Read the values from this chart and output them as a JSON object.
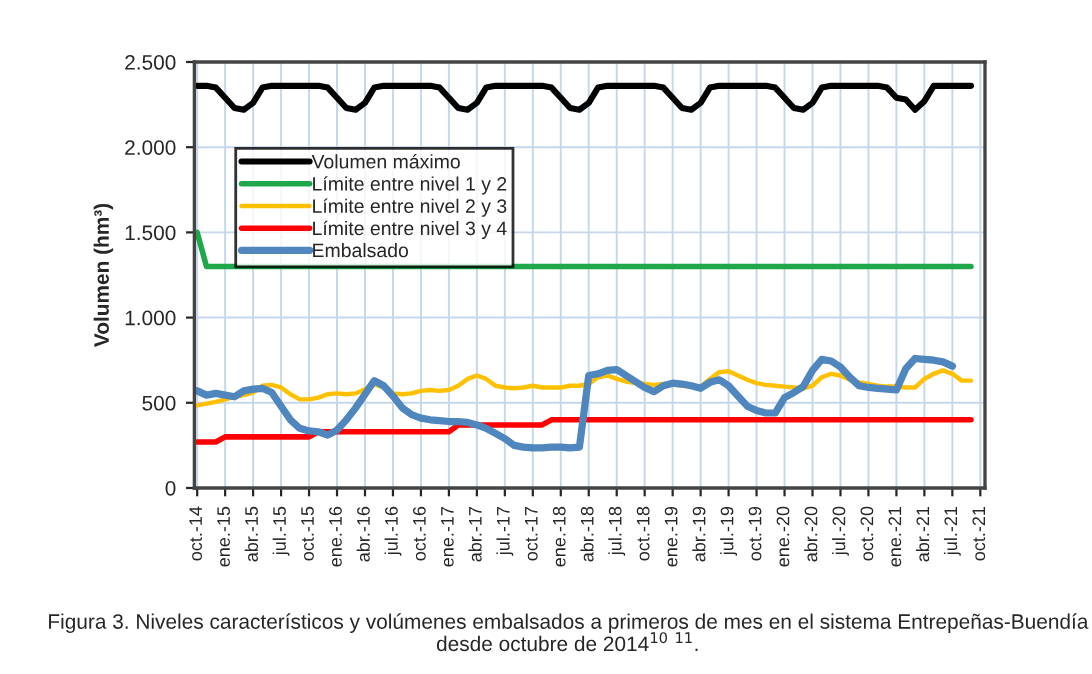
{
  "chart_data": {
    "type": "line",
    "categories": [
      "oct.-14",
      null,
      null,
      "ene.-15",
      null,
      null,
      "abr.-15",
      null,
      null,
      "jul.-15",
      null,
      null,
      "oct.-15",
      null,
      null,
      "ene.-16",
      null,
      null,
      "abr.-16",
      null,
      null,
      "jul.-16",
      null,
      null,
      "oct.-16",
      null,
      null,
      "ene.-17",
      null,
      null,
      "abr.-17",
      null,
      null,
      "jul.-17",
      null,
      null,
      "oct.-17",
      null,
      null,
      "ene.-18",
      null,
      null,
      "abr.-18",
      null,
      null,
      "jul.-18",
      null,
      null,
      "oct.-18",
      null,
      null,
      "ene.-19",
      null,
      null,
      "abr.-19",
      null,
      null,
      "jul.-19",
      null,
      null,
      "oct.-19",
      null,
      null,
      "ene.-20",
      null,
      null,
      "abr.-20",
      null,
      null,
      "jul.-20",
      null,
      null,
      "oct.-20",
      null,
      null,
      "ene.-21",
      null,
      null,
      "abr.-21",
      null,
      null,
      "jul.-21",
      null,
      null,
      "oct.-21"
    ],
    "ylabel": "Volumen (hm³)",
    "ylim": [
      0,
      2500
    ],
    "yticks": [
      0,
      500,
      {
        "value": 1000,
        "label": "1.000"
      },
      {
        "value": 1500,
        "label": "1.500"
      },
      {
        "value": 2000,
        "label": "2.000"
      },
      {
        "value": 2500,
        "label": "2.500"
      }
    ],
    "grid": true,
    "legend": "top left",
    "series": [
      {
        "name": "Volumen máximo",
        "color": "#000000",
        "values": [
          2360,
          2360,
          2350,
          2290,
          2230,
          2220,
          2260,
          2350,
          2360,
          2360,
          2360,
          2360,
          2360,
          2360,
          2350,
          2290,
          2230,
          2220,
          2260,
          2350,
          2360,
          2360,
          2360,
          2360,
          2360,
          2360,
          2350,
          2290,
          2230,
          2220,
          2260,
          2350,
          2360,
          2360,
          2360,
          2360,
          2360,
          2360,
          2350,
          2290,
          2230,
          2220,
          2260,
          2350,
          2360,
          2360,
          2360,
          2360,
          2360,
          2360,
          2350,
          2290,
          2230,
          2220,
          2260,
          2350,
          2360,
          2360,
          2360,
          2360,
          2360,
          2360,
          2350,
          2290,
          2230,
          2220,
          2260,
          2350,
          2360,
          2360,
          2360,
          2360,
          2360,
          2360,
          2350,
          2290,
          2280,
          2220,
          2270,
          2360,
          2360,
          2360,
          2360,
          2360,
          null
        ]
      },
      {
        "name": "Límite entre nivel 1 y 2",
        "color": "#1fa84a",
        "values": [
          1500,
          1300,
          1300,
          1300,
          1300,
          1300,
          1300,
          1300,
          1300,
          1300,
          1300,
          1300,
          1300,
          1300,
          1300,
          1300,
          1300,
          1300,
          1300,
          1300,
          1300,
          1300,
          1300,
          1300,
          1300,
          1300,
          1300,
          1300,
          1300,
          1300,
          1300,
          1300,
          1300,
          1300,
          1300,
          1300,
          1300,
          1300,
          1300,
          1300,
          1300,
          1300,
          1300,
          1300,
          1300,
          1300,
          1300,
          1300,
          1300,
          1300,
          1300,
          1300,
          1300,
          1300,
          1300,
          1300,
          1300,
          1300,
          1300,
          1300,
          1300,
          1300,
          1300,
          1300,
          1300,
          1300,
          1300,
          1300,
          1300,
          1300,
          1300,
          1300,
          1300,
          1300,
          1300,
          1300,
          1300,
          1300,
          1300,
          1300,
          1300,
          1300,
          1300,
          1300,
          null
        ]
      },
      {
        "name": "Límite entre nivel 2 y 3",
        "color": "#ffc000",
        "values": [
          485,
          495,
          505,
          520,
          535,
          545,
          560,
          600,
          605,
          590,
          550,
          520,
          520,
          530,
          550,
          555,
          550,
          555,
          580,
          610,
          590,
          555,
          550,
          555,
          570,
          575,
          570,
          575,
          600,
          640,
          660,
          640,
          600,
          590,
          585,
          590,
          600,
          590,
          590,
          590,
          600,
          600,
          610,
          650,
          660,
          640,
          625,
          615,
          610,
          605,
          610,
          610,
          600,
          595,
          595,
          640,
          680,
          685,
          660,
          635,
          615,
          605,
          600,
          595,
          590,
          585,
          600,
          650,
          670,
          660,
          635,
          620,
          610,
          600,
          595,
          595,
          590,
          590,
          640,
          670,
          690,
          670,
          630,
          630,
          null
        ]
      },
      {
        "name": "Límite entre nivel 3 y 4",
        "color": "#ff0000",
        "values": [
          270,
          270,
          270,
          300,
          300,
          300,
          300,
          300,
          300,
          300,
          300,
          300,
          300,
          330,
          330,
          330,
          330,
          330,
          330,
          330,
          330,
          330,
          330,
          330,
          330,
          330,
          330,
          330,
          370,
          370,
          370,
          370,
          370,
          370,
          370,
          370,
          370,
          370,
          400,
          400,
          400,
          400,
          400,
          400,
          400,
          400,
          400,
          400,
          400,
          400,
          400,
          400,
          400,
          400,
          400,
          400,
          400,
          400,
          400,
          400,
          400,
          400,
          400,
          400,
          400,
          400,
          400,
          400,
          400,
          400,
          400,
          400,
          400,
          400,
          400,
          400,
          400,
          400,
          400,
          400,
          400,
          400,
          400,
          400,
          null
        ]
      },
      {
        "name": "Embalsado",
        "color": "#4f86be",
        "values": [
          570,
          545,
          555,
          545,
          535,
          570,
          580,
          585,
          560,
          480,
          400,
          350,
          335,
          330,
          310,
          340,
          400,
          470,
          550,
          630,
          600,
          540,
          470,
          430,
          410,
          400,
          395,
          390,
          390,
          385,
          370,
          350,
          320,
          290,
          250,
          240,
          235,
          235,
          240,
          240,
          235,
          240,
          660,
          670,
          690,
          695,
          660,
          625,
          590,
          565,
          600,
          615,
          610,
          600,
          585,
          620,
          635,
          600,
          540,
          480,
          455,
          440,
          440,
          530,
          560,
          595,
          690,
          755,
          745,
          710,
          650,
          600,
          590,
          585,
          580,
          575,
          700,
          760,
          755,
          750,
          740,
          715,
          null,
          null,
          null
        ]
      }
    ],
    "annotations": [
      "Figura 3. Niveles característicos y volúmenes embalsados a primeros de mes en el sistema Entrepeñas-Buendía desde octubre de 2014$^{10}$ $^{11}$."
    ]
  }
}
